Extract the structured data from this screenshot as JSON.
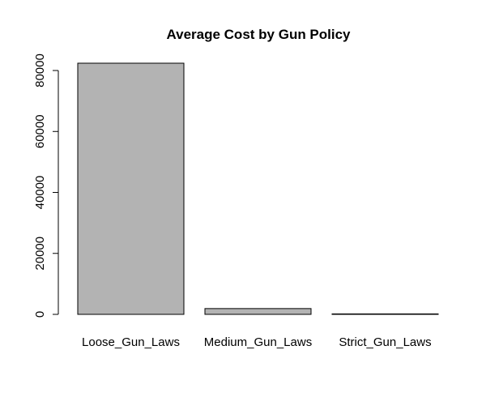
{
  "chart_data": {
    "type": "bar",
    "title": "Average Cost by Gun Policy",
    "xlabel": "",
    "ylabel": "",
    "categories": [
      "Loose_Gun_Laws",
      "Medium_Gun_Laws",
      "Strict_Gun_Laws"
    ],
    "values": [
      82400,
      1900,
      150
    ],
    "ylim": [
      0,
      82400
    ],
    "yticks": [
      0,
      20000,
      40000,
      60000,
      80000
    ],
    "grid": false,
    "legend": "none",
    "colors": {
      "bar_fill": "#b3b3b3",
      "bar_stroke": "#000000"
    }
  }
}
